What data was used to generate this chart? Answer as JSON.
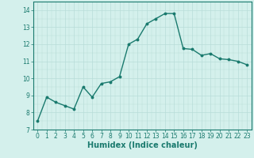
{
  "x": [
    0,
    1,
    2,
    3,
    4,
    5,
    6,
    7,
    8,
    9,
    10,
    11,
    12,
    13,
    14,
    15,
    16,
    17,
    18,
    19,
    20,
    21,
    22,
    23
  ],
  "y": [
    7.5,
    8.9,
    8.6,
    8.4,
    8.2,
    9.5,
    8.9,
    9.7,
    9.8,
    10.1,
    12.0,
    12.3,
    13.2,
    13.5,
    13.8,
    13.8,
    11.75,
    11.7,
    11.35,
    11.45,
    11.15,
    11.1,
    11.0,
    10.8
  ],
  "line_color": "#1a7a6e",
  "marker": "o",
  "markersize": 1.8,
  "linewidth": 1.0,
  "bg_color": "#d4f0ec",
  "grid_color": "#b8ddd8",
  "xlabel": "Humidex (Indice chaleur)",
  "xlabel_fontsize": 7,
  "ylabel_ticks": [
    7,
    8,
    9,
    10,
    11,
    12,
    13,
    14
  ],
  "xlim": [
    -0.5,
    23.5
  ],
  "ylim": [
    7,
    14.5
  ],
  "xtick_labels": [
    "0",
    "1",
    "2",
    "3",
    "4",
    "5",
    "6",
    "7",
    "8",
    "9",
    "10",
    "11",
    "12",
    "13",
    "14",
    "15",
    "16",
    "17",
    "18",
    "19",
    "20",
    "21",
    "22",
    "23"
  ],
  "tick_color": "#1a7a6e",
  "tick_fontsize": 5.5,
  "spine_color": "#1a7a6e",
  "grid_major_color": "#c8e8e4",
  "grid_minor_color": "#daf2ee"
}
